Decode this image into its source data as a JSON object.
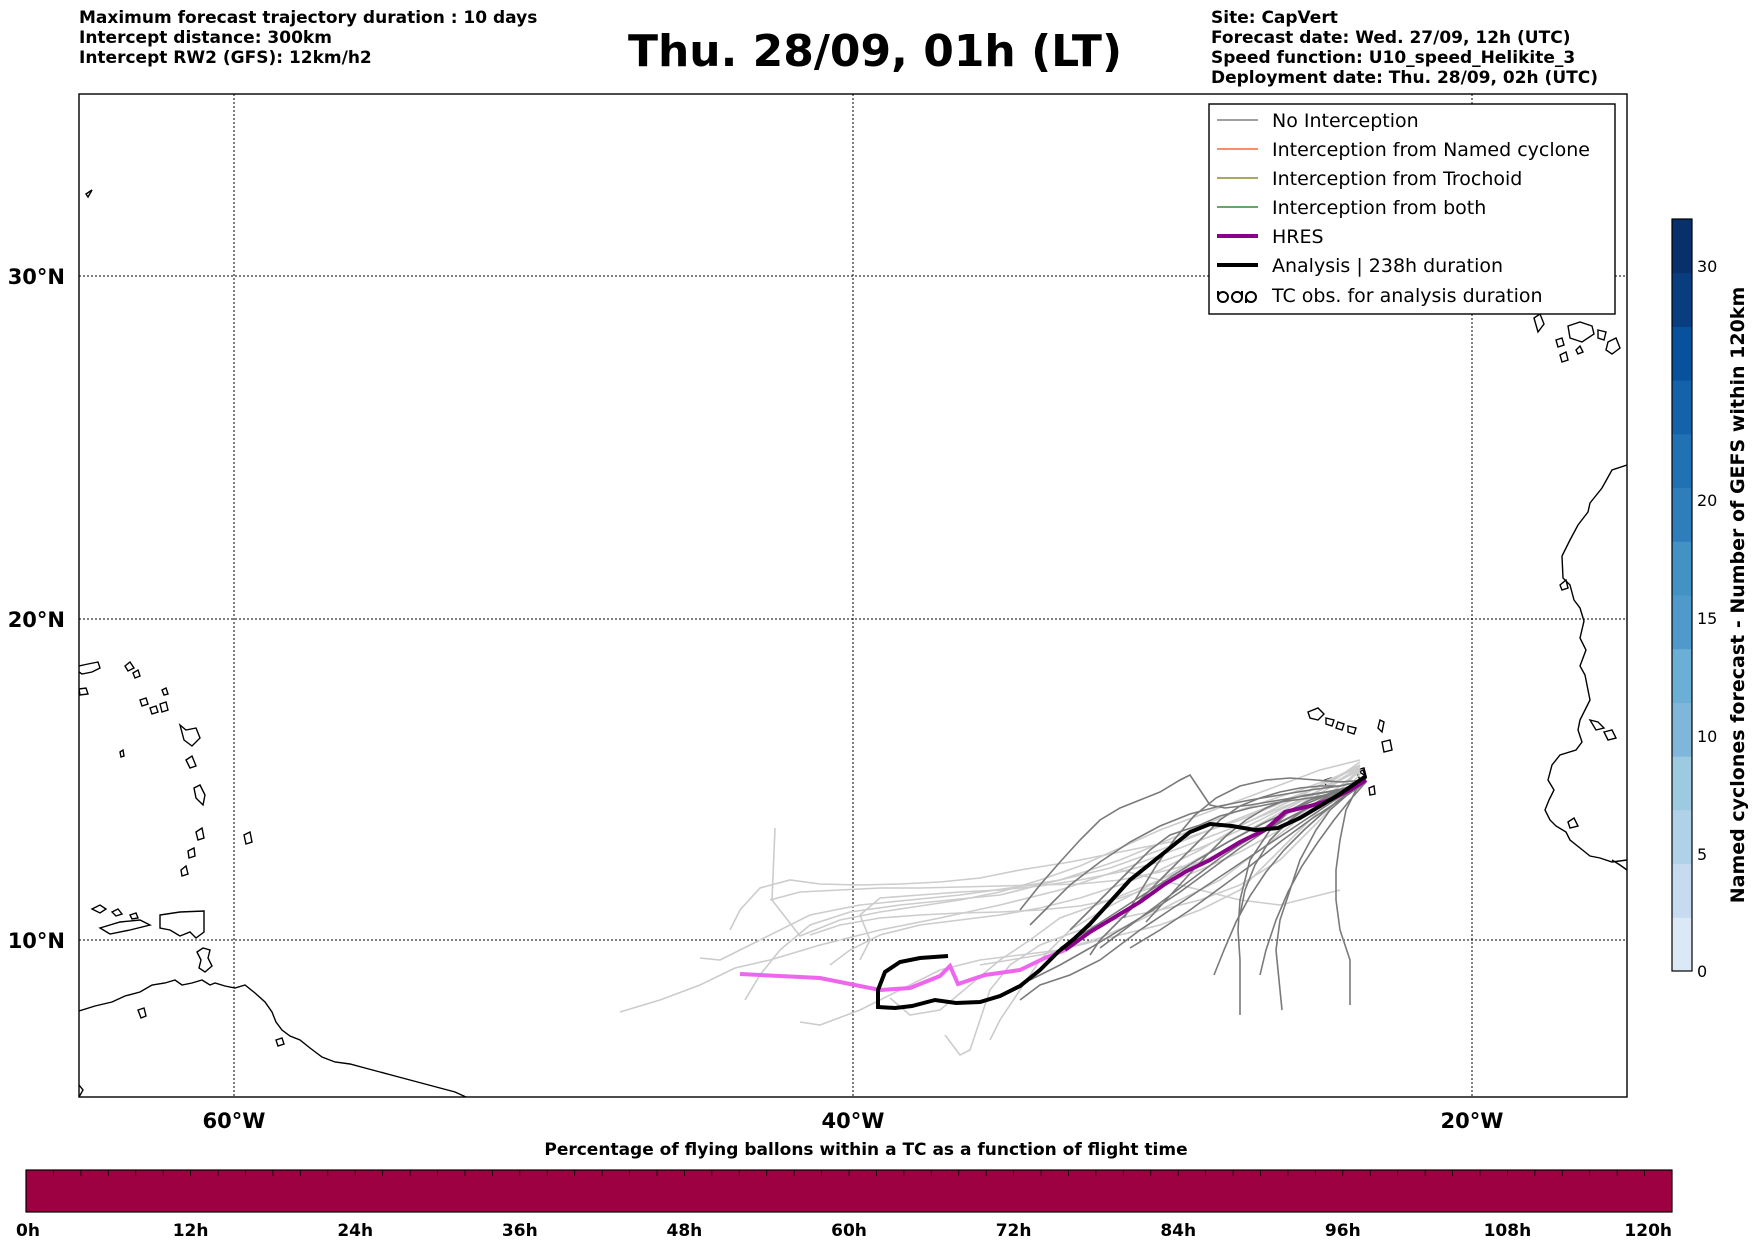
{
  "header": {
    "left_lines": [
      "Maximum forecast trajectory duration : 10 days",
      "Intercept distance: 300km",
      "Intercept RW2 (GFS):  12km/h2"
    ],
    "title": "Thu. 28/09, 01h (LT)",
    "right_lines": [
      "Site: CapVert",
      "Forecast date: Wed. 27/09, 12h (UTC)",
      "Speed function: U10_speed_Helikite_3",
      "Deployment date: Thu. 28/09, 02h (UTC)"
    ]
  },
  "map": {
    "lon_labels": [
      "60°W",
      "40°W",
      "20°W"
    ],
    "lat_labels": [
      "30°N",
      "20°N",
      "10°N"
    ],
    "lon_range": [
      -65,
      -15
    ],
    "lat_range": [
      5.4,
      34.8
    ]
  },
  "legend": {
    "items": [
      {
        "label": "No Interception",
        "color": "#808080",
        "style": "thin"
      },
      {
        "label": "Interception from Named cyclone",
        "color": "#ff6633",
        "style": "thin"
      },
      {
        "label": "Interception from Trochoid",
        "color": "#8b8b2a",
        "style": "thin"
      },
      {
        "label": "Interception from both",
        "color": "#2e8b2e",
        "style": "thin"
      },
      {
        "label": "HRES",
        "color": "#8b008b",
        "style": "thick"
      },
      {
        "label": "Analysis | 238h duration",
        "color": "#000000",
        "style": "thick"
      },
      {
        "label": "TC obs. for analysis duration",
        "color": "#000000",
        "style": "tc-icon"
      }
    ]
  },
  "colorbar_right": {
    "label": "Named cyclones forecast - Number of GEFS within 120km",
    "ticks": [
      "0",
      "5",
      "10",
      "15",
      "20",
      "30"
    ],
    "colors": [
      "#dbe9f6",
      "#c6dbef",
      "#b0d2e8",
      "#9ecae1",
      "#7fb6da",
      "#6baed6",
      "#4f9acb",
      "#4292c6",
      "#2f7ebc",
      "#2171b5",
      "#1462aa",
      "#08519c",
      "#083e80",
      "#08306b"
    ]
  },
  "colorbar_bottom": {
    "title": "Percentage of flying ballons within a TC as a function of flight time",
    "ticks": [
      "0h",
      "12h",
      "24h",
      "36h",
      "48h",
      "60h",
      "72h",
      "84h",
      "96h",
      "108h",
      "120h"
    ],
    "fill_color": "#9e0142"
  }
}
